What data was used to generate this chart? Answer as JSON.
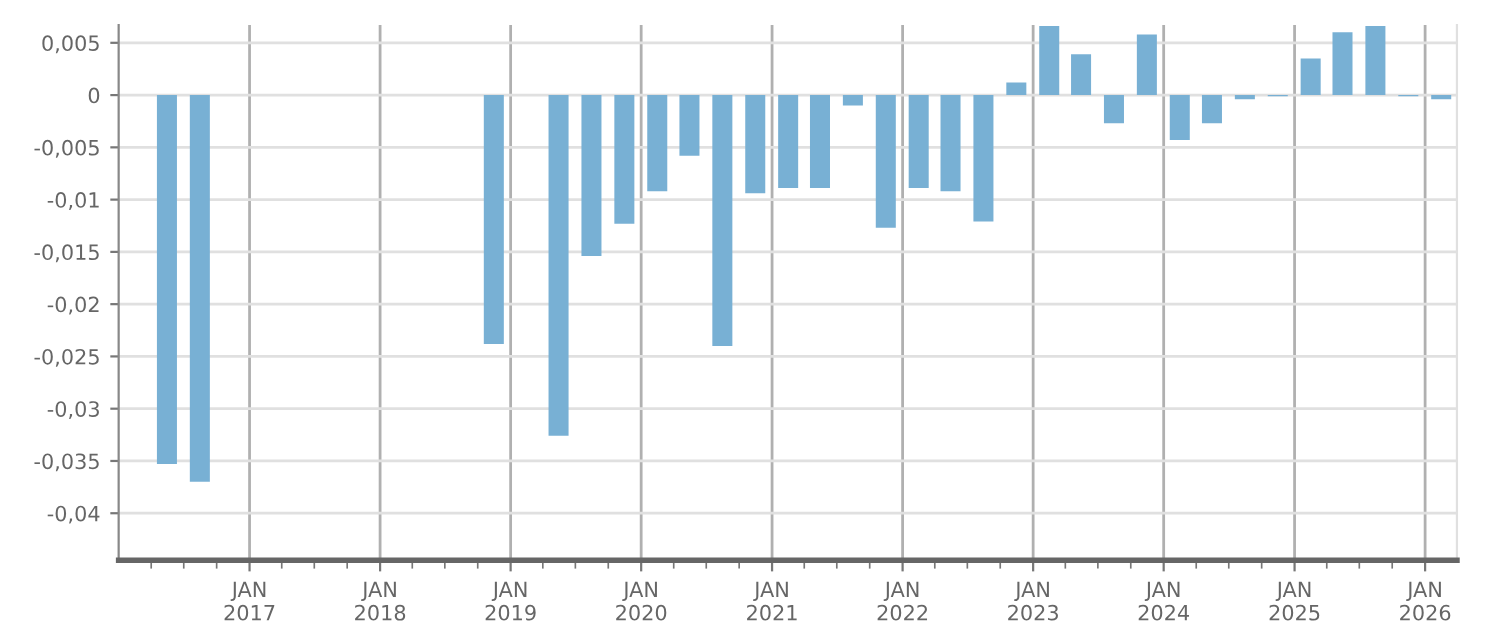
{
  "chart_data": {
    "type": "bar",
    "color": "#78b0d4",
    "x": [
      "2016-05-15",
      "2016-08-15",
      "2018-11-15",
      "2019-05-15",
      "2019-08-15",
      "2019-11-15",
      "2020-02-15",
      "2020-05-15",
      "2020-08-15",
      "2020-11-15",
      "2021-02-15",
      "2021-05-15",
      "2021-08-15",
      "2021-11-15",
      "2022-02-15",
      "2022-05-15",
      "2022-08-15",
      "2022-11-15",
      "2023-02-15",
      "2023-05-15",
      "2023-08-15",
      "2023-11-15",
      "2024-02-15",
      "2024-05-15",
      "2024-08-15",
      "2024-11-15",
      "2025-02-15",
      "2025-05-15",
      "2025-08-15",
      "2025-11-15",
      "2026-02-15"
    ],
    "values": [
      -0.0353,
      -0.037,
      -0.0238,
      -0.0326,
      -0.0154,
      -0.0123,
      -0.0092,
      -0.0058,
      -0.024,
      -0.0094,
      -0.0089,
      -0.0089,
      -0.001,
      -0.0127,
      -0.0089,
      -0.0092,
      -0.0121,
      0.0012,
      0.0066,
      0.0039,
      -0.0027,
      0.0058,
      -0.0043,
      -0.0027,
      -0.0004,
      -0.0001,
      0.0035,
      0.006,
      0.0066,
      -0.0001,
      -0.0004
    ],
    "ylim": [
      -0.0445,
      0.0067
    ],
    "yticks": [
      {
        "value": -0.04,
        "label": "-0,04"
      },
      {
        "value": -0.035,
        "label": "-0,035"
      },
      {
        "value": -0.03,
        "label": "-0,03"
      },
      {
        "value": -0.025,
        "label": "-0,025"
      },
      {
        "value": -0.02,
        "label": "-0,02"
      },
      {
        "value": -0.015,
        "label": "-0,015"
      },
      {
        "value": -0.01,
        "label": "-0,01"
      },
      {
        "value": -0.005,
        "label": "-0,005"
      },
      0,
      {
        "value": 0.005,
        "label": "0,005"
      }
    ],
    "xlim": [
      "2016-01-01",
      "2026-03-31"
    ],
    "xticks": [
      {
        "value": "2016-04-01",
        "label": null
      },
      {
        "value": "2016-07-01",
        "label": null
      },
      {
        "value": "2016-10-01",
        "label": null
      },
      {
        "value": "2017-01-01",
        "label": "JAN\n2017"
      },
      {
        "value": "2017-04-01",
        "label": null
      },
      {
        "value": "2017-07-01",
        "label": null
      },
      {
        "value": "2017-10-01",
        "label": null
      },
      {
        "value": "2018-01-01",
        "label": "JAN\n2018"
      },
      {
        "value": "2018-04-01",
        "label": null
      },
      {
        "value": "2018-07-01",
        "label": null
      },
      {
        "value": "2018-10-01",
        "label": null
      },
      {
        "value": "2019-01-01",
        "label": "JAN\n2019"
      },
      {
        "value": "2019-04-01",
        "label": null
      },
      {
        "value": "2019-07-01",
        "label": null
      },
      {
        "value": "2019-10-01",
        "label": null
      },
      {
        "value": "2020-01-01",
        "label": "JAN\n2020"
      },
      {
        "value": "2020-04-01",
        "label": null
      },
      {
        "value": "2020-07-01",
        "label": null
      },
      {
        "value": "2020-10-01",
        "label": null
      },
      {
        "value": "2021-01-01",
        "label": "JAN\n2021"
      },
      {
        "value": "2021-04-01",
        "label": null
      },
      {
        "value": "2021-07-01",
        "label": null
      },
      {
        "value": "2021-10-01",
        "label": null
      },
      {
        "value": "2022-01-01",
        "label": "JAN\n2022"
      },
      {
        "value": "2022-04-01",
        "label": null
      },
      {
        "value": "2022-07-01",
        "label": null
      },
      {
        "value": "2022-10-01",
        "label": null
      },
      {
        "value": "2023-01-01",
        "label": "JAN\n2023"
      },
      {
        "value": "2023-04-01",
        "label": null
      },
      {
        "value": "2023-07-01",
        "label": null
      },
      {
        "value": "2023-10-01",
        "label": null
      },
      {
        "value": "2024-01-01",
        "label": "JAN\n2024"
      },
      {
        "value": "2024-04-01",
        "label": null
      },
      {
        "value": "2024-07-01",
        "label": null
      },
      {
        "value": "2024-10-01",
        "label": null
      },
      {
        "value": "2025-01-01",
        "label": "JAN\n2025"
      },
      {
        "value": "2025-04-01",
        "label": null
      },
      {
        "value": "2025-07-01",
        "label": null
      },
      {
        "value": "2025-10-01",
        "label": null
      },
      {
        "value": "2026-01-01",
        "label": "JAN\n2026"
      }
    ],
    "grid": true
  }
}
